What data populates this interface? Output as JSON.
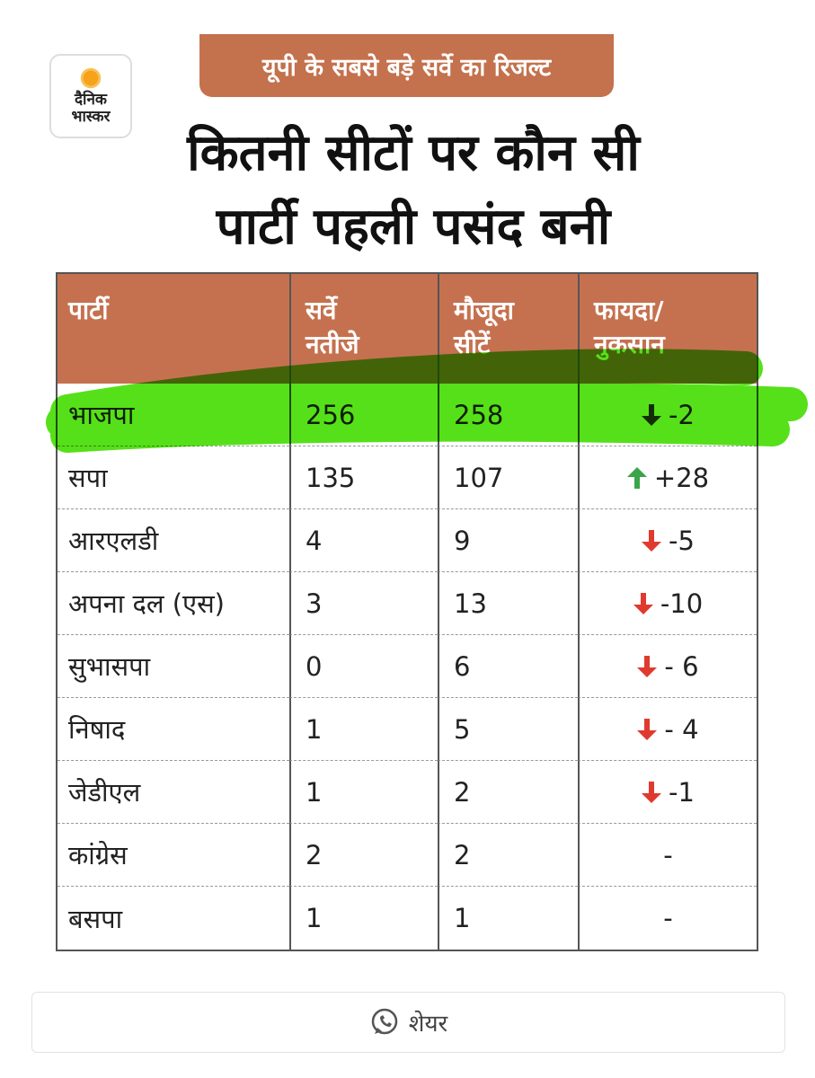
{
  "badge": "यूपी के सबसे बड़े सर्वे का रिजल्ट",
  "logo": {
    "line1": "दैनिक",
    "line2": "भास्कर"
  },
  "title": [
    "कितनी सीटों पर कौन सी",
    "पार्टी पहली पसंद बनी"
  ],
  "table": {
    "headers": [
      [
        "पार्टी"
      ],
      [
        "सर्वे",
        "नतीजे"
      ],
      [
        "मौजूदा",
        "सीटें"
      ],
      [
        "फायदा/",
        "नुकसान"
      ]
    ],
    "rows": [
      [
        "भाजपा",
        "256",
        "258",
        "-2"
      ],
      [
        "सपा",
        "135",
        "107",
        "+28"
      ],
      [
        "आरएलडी",
        "4",
        "9",
        "-5"
      ],
      [
        "अपना दल (एस)",
        "3",
        "13",
        "-10"
      ],
      [
        "सुभासपा",
        "0",
        "6",
        "- 6"
      ],
      [
        "निषाद",
        "1",
        "5",
        "- 4"
      ],
      [
        "जेडीएल",
        "1",
        "2",
        "-1"
      ],
      [
        "कांग्रेस",
        "2",
        "2",
        "-"
      ],
      [
        "बसपा",
        "1",
        "1",
        "-"
      ]
    ]
  },
  "share": "शेयर"
}
